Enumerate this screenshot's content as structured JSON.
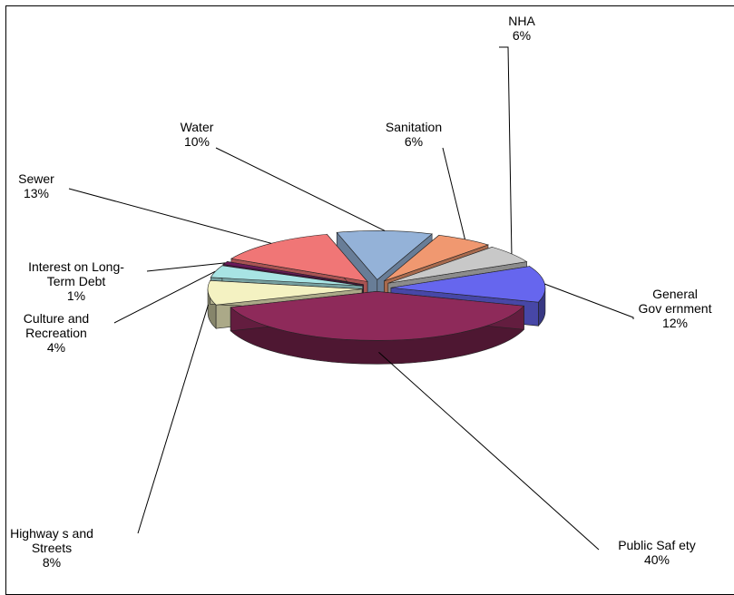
{
  "chart_data": {
    "type": "pie",
    "style": "3d-exploded",
    "title": "",
    "legend": "none",
    "slices": [
      {
        "label": "General Government",
        "label_lines": [
          "General",
          "Gov ernment"
        ],
        "percent_text": "12%",
        "value": 12,
        "color": "#6666ee"
      },
      {
        "label": "Public Safety",
        "label_lines": [
          "Public Saf ety"
        ],
        "percent_text": "40%",
        "value": 40,
        "color": "#8e2a5a"
      },
      {
        "label": "Highways and Streets",
        "label_lines": [
          "Highway s and",
          "Streets"
        ],
        "percent_text": "8%",
        "value": 8,
        "color": "#f4f2c2"
      },
      {
        "label": "Culture and Recreation",
        "label_lines": [
          "Culture and",
          "Recreation"
        ],
        "percent_text": "4%",
        "value": 4,
        "color": "#a8e4e4"
      },
      {
        "label": "Interest on Long-Term Debt",
        "label_lines": [
          "Interest on Long-",
          "Term Debt"
        ],
        "percent_text": "1%",
        "value": 1,
        "color": "#6a1a5a"
      },
      {
        "label": "Sewer",
        "label_lines": [
          "Sewer"
        ],
        "percent_text": "13%",
        "value": 13,
        "color": "#f07676"
      },
      {
        "label": "Water",
        "label_lines": [
          "Water"
        ],
        "percent_text": "10%",
        "value": 10,
        "color": "#94b2d8"
      },
      {
        "label": "Sanitation",
        "label_lines": [
          "Sanitation"
        ],
        "percent_text": "6%",
        "value": 6,
        "color": "#f09870"
      },
      {
        "label": "NHA",
        "label_lines": [
          "NHA"
        ],
        "percent_text": "6%",
        "value": 6,
        "color": "#c8c8c8"
      }
    ]
  }
}
